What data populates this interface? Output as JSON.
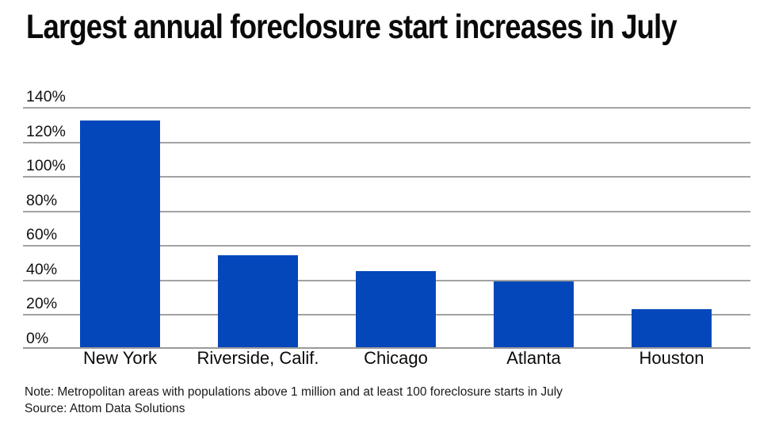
{
  "title": "Largest annual foreclosure start increases in July",
  "footer": {
    "note": "Note: Metropolitan areas with populations above 1 million and at least 100 foreclosure starts in July",
    "source": "Source: Attom Data Solutions"
  },
  "colors": {
    "bar": "#0347bb",
    "gridline": "#a3a3a3",
    "title_text": "#0a0a0a",
    "note_text": "#1a1a1a",
    "background": "#ffffff"
  },
  "chart_data": {
    "type": "bar",
    "title": "Largest annual foreclosure start increases in July",
    "categories": [
      "New York",
      "Riverside, Calif.",
      "Chicago",
      "Atlanta",
      "Houston"
    ],
    "values": [
      132,
      54,
      45,
      39,
      23
    ],
    "value_unit": "percent",
    "xlabel": "",
    "ylabel": "",
    "ylim": [
      0,
      140
    ],
    "ytick_step": 20,
    "yticks": [
      "0%",
      "20%",
      "40%",
      "60%",
      "80%",
      "100%",
      "120%",
      "140%"
    ],
    "grid": true,
    "legend": false,
    "note": "Note: Metropolitan areas with populations above 1 million and at least 100 foreclosure starts in July",
    "source": "Source: Attom Data Solutions"
  }
}
